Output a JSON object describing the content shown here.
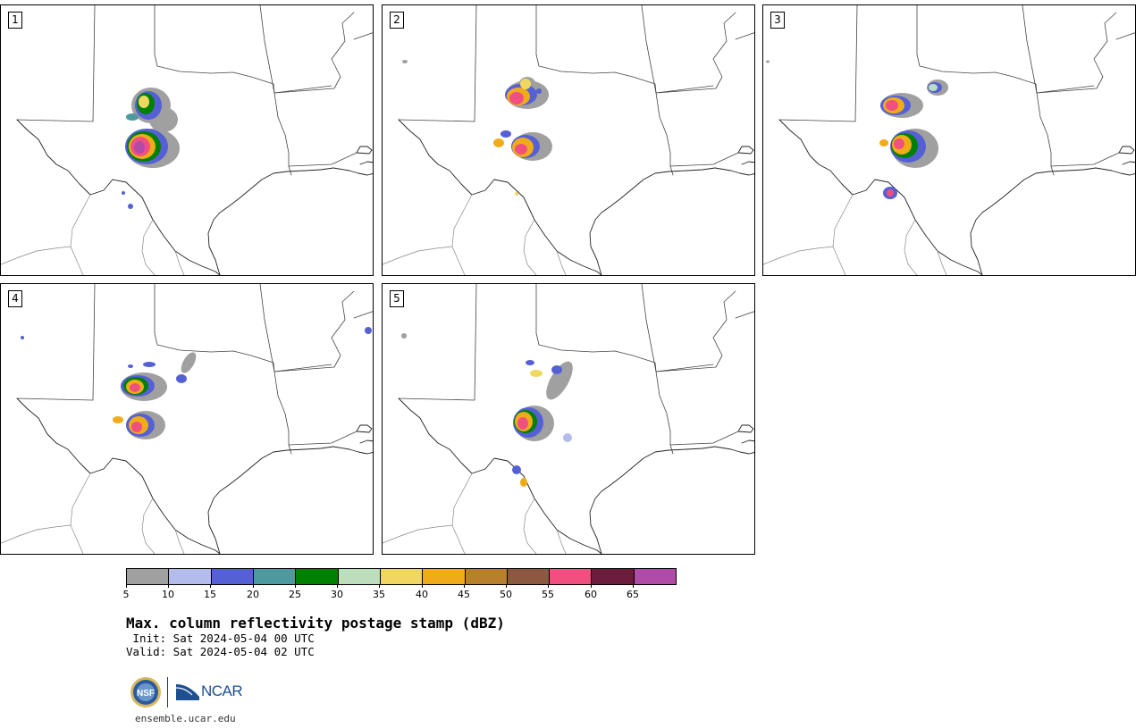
{
  "panels": [
    {
      "label": "1"
    },
    {
      "label": "2"
    },
    {
      "label": "3"
    },
    {
      "label": "4"
    },
    {
      "label": "5"
    }
  ],
  "colorbar": {
    "colors": [
      "#a0a0a0",
      "#b4bcec",
      "#5460d4",
      "#4e98a0",
      "#008000",
      "#bcdebc",
      "#f0d860",
      "#f0ac18",
      "#b8802c",
      "#8c5840",
      "#f05080",
      "#6c1c3c",
      "#b04ca8"
    ],
    "tick_labels": [
      "5",
      "10",
      "15",
      "20",
      "25",
      "30",
      "35",
      "40",
      "45",
      "50",
      "55",
      "60",
      "65"
    ]
  },
  "title": "Max. column reflectivity postage stamp (dBZ)",
  "init": " Init: Sat 2024-05-04 00 UTC",
  "valid": "Valid: Sat 2024-05-04 02 UTC",
  "logos": {
    "ncar": "NCAR",
    "nsf": "NSF"
  },
  "site": "ensemble.ucar.edu"
}
